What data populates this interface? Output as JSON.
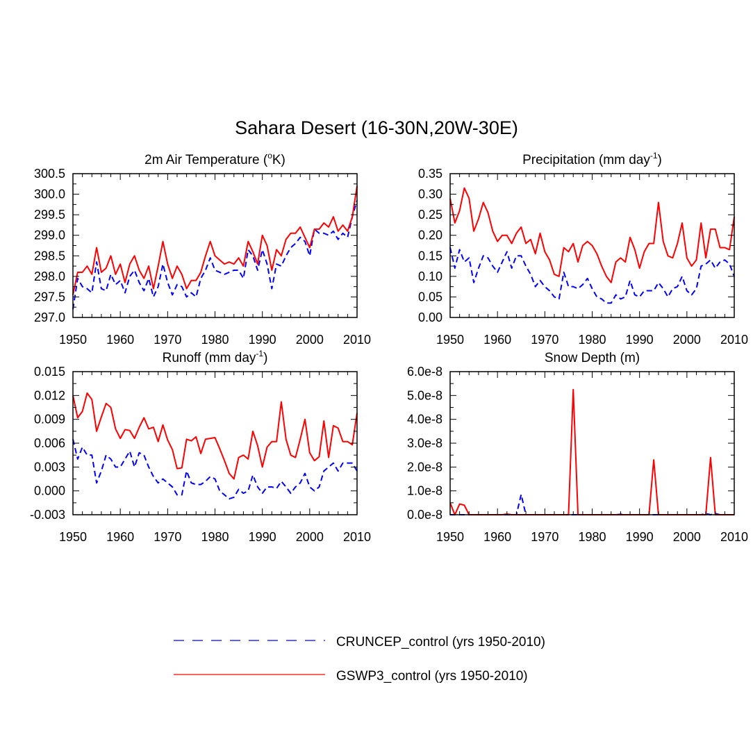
{
  "figure": {
    "title": "Sahara Desert (16-30N,20W-30E)"
  },
  "legend": {
    "entries": [
      {
        "label": "CRUNCEP_control (yrs 1950-2010)",
        "color": "#0000ff",
        "dash": true
      },
      {
        "label": "GSWP3_control (yrs 1950-2010)",
        "color": "#ff0000",
        "dash": false
      }
    ]
  },
  "chart_data": [
    {
      "type": "line",
      "title": "2m Air Temperature (",
      "title_sup": "o",
      "title_after": "K)",
      "xlabel": "",
      "ylabel": "",
      "xlim": [
        1950,
        2010
      ],
      "ylim": [
        297.0,
        300.5
      ],
      "xticks": [
        "1950",
        "1960",
        "1970",
        "1980",
        "1990",
        "2000",
        "2010"
      ],
      "yticks": [
        "297.0",
        "297.5",
        "298.0",
        "298.5",
        "299.0",
        "299.5",
        "300.0",
        "300.5"
      ],
      "x_start": 1950,
      "series": [
        {
          "name": "CRUNCEP_control (yrs 1950-2010)",
          "color": "#0000ff",
          "dash": true,
          "values": [
            297.2,
            297.95,
            297.75,
            297.7,
            297.6,
            298.35,
            297.7,
            297.65,
            298.05,
            297.8,
            297.9,
            297.6,
            298.0,
            298.15,
            297.85,
            297.65,
            297.95,
            297.5,
            297.75,
            298.3,
            297.85,
            297.55,
            297.8,
            297.75,
            297.5,
            297.6,
            297.5,
            297.95,
            298.15,
            298.45,
            298.15,
            298.1,
            298.05,
            298.1,
            298.15,
            298.15,
            297.95,
            298.65,
            298.5,
            298.15,
            298.65,
            298.3,
            297.7,
            298.3,
            298.25,
            298.5,
            298.7,
            298.8,
            298.95,
            298.85,
            298.5,
            299.15,
            299.05,
            299.05,
            299.0,
            299.1,
            298.9,
            299.05,
            298.95,
            299.45,
            299.85
          ]
        },
        {
          "name": "GSWP3_control (yrs 1950-2010)",
          "color": "#ff0000",
          "dash": false,
          "values": [
            297.55,
            298.1,
            298.1,
            298.25,
            298.05,
            298.7,
            298.1,
            298.2,
            298.5,
            298.05,
            298.3,
            297.85,
            298.3,
            298.5,
            298.15,
            297.95,
            298.25,
            297.7,
            298.25,
            298.85,
            298.3,
            297.95,
            298.25,
            298.05,
            297.7,
            297.9,
            297.9,
            298.1,
            298.5,
            298.85,
            298.5,
            298.4,
            298.3,
            298.35,
            298.3,
            298.45,
            298.25,
            298.85,
            298.6,
            298.3,
            299.0,
            298.75,
            298.15,
            298.65,
            298.5,
            298.9,
            299.05,
            299.05,
            299.2,
            298.95,
            298.7,
            299.15,
            299.15,
            299.3,
            299.2,
            299.45,
            299.1,
            299.25,
            299.1,
            299.45,
            300.2
          ]
        }
      ]
    },
    {
      "type": "line",
      "title": "Precipitation (mm day",
      "title_sup": "-1",
      "title_after": ")",
      "xlabel": "",
      "ylabel": "",
      "xlim": [
        1950,
        2010
      ],
      "ylim": [
        0.0,
        0.35
      ],
      "xticks": [
        "1950",
        "1960",
        "1970",
        "1980",
        "1990",
        "2000",
        "2010"
      ],
      "yticks": [
        "0.00",
        "0.05",
        "0.10",
        "0.15",
        "0.20",
        "0.25",
        "0.30",
        "0.35"
      ],
      "x_start": 1950,
      "series": [
        {
          "name": "CRUNCEP_control (yrs 1950-2010)",
          "color": "#0000ff",
          "dash": true,
          "values": [
            0.17,
            0.12,
            0.165,
            0.135,
            0.145,
            0.085,
            0.12,
            0.15,
            0.145,
            0.125,
            0.11,
            0.135,
            0.16,
            0.12,
            0.15,
            0.15,
            0.125,
            0.105,
            0.075,
            0.09,
            0.075,
            0.065,
            0.05,
            0.045,
            0.11,
            0.075,
            0.075,
            0.07,
            0.08,
            0.095,
            0.07,
            0.05,
            0.045,
            0.035,
            0.035,
            0.055,
            0.045,
            0.05,
            0.09,
            0.055,
            0.05,
            0.065,
            0.065,
            0.065,
            0.085,
            0.07,
            0.05,
            0.07,
            0.075,
            0.1,
            0.065,
            0.055,
            0.07,
            0.125,
            0.13,
            0.14,
            0.12,
            0.135,
            0.14,
            0.13,
            0.1
          ]
        },
        {
          "name": "GSWP3_control (yrs 1950-2010)",
          "color": "#ff0000",
          "dash": false,
          "values": [
            0.29,
            0.23,
            0.26,
            0.315,
            0.29,
            0.21,
            0.24,
            0.28,
            0.255,
            0.21,
            0.185,
            0.2,
            0.2,
            0.18,
            0.205,
            0.22,
            0.18,
            0.19,
            0.155,
            0.205,
            0.16,
            0.14,
            0.105,
            0.1,
            0.17,
            0.16,
            0.18,
            0.135,
            0.175,
            0.185,
            0.175,
            0.155,
            0.125,
            0.1,
            0.085,
            0.135,
            0.145,
            0.135,
            0.195,
            0.165,
            0.12,
            0.16,
            0.18,
            0.18,
            0.28,
            0.185,
            0.15,
            0.145,
            0.18,
            0.23,
            0.145,
            0.125,
            0.14,
            0.23,
            0.145,
            0.215,
            0.215,
            0.17,
            0.17,
            0.165,
            0.245
          ]
        }
      ]
    },
    {
      "type": "line",
      "title": "Runoff (mm day",
      "title_sup": "-1",
      "title_after": ")",
      "xlabel": "",
      "ylabel": "",
      "xlim": [
        1950,
        2010
      ],
      "ylim": [
        -0.003,
        0.015
      ],
      "xticks": [
        "1950",
        "1960",
        "1970",
        "1980",
        "1990",
        "2000",
        "2010"
      ],
      "yticks": [
        "-0.003",
        "0.000",
        "0.003",
        "0.006",
        "0.009",
        "0.012",
        "0.015"
      ],
      "x_start": 1950,
      "series": [
        {
          "name": "CRUNCEP_control (yrs 1950-2010)",
          "color": "#0000ff",
          "dash": true,
          "values": [
            0.0065,
            0.004,
            0.0055,
            0.0045,
            0.0045,
            0.001,
            0.0025,
            0.0045,
            0.004,
            0.003,
            0.003,
            0.004,
            0.005,
            0.003,
            0.0048,
            0.0045,
            0.003,
            0.0018,
            0.001,
            0.0015,
            0.001,
            0.0005,
            -0.0005,
            -0.0005,
            0.0025,
            0.001,
            0.0008,
            0.0008,
            0.0012,
            0.0018,
            0.0015,
            0.0,
            -0.0005,
            -0.001,
            -0.0008,
            0.0002,
            -0.0003,
            0.0,
            0.002,
            0.0005,
            -0.0003,
            0.0005,
            0.0005,
            0.0003,
            0.0012,
            0.0005,
            -0.0003,
            0.0005,
            0.001,
            0.0022,
            0.0005,
            0.0,
            0.0005,
            0.0025,
            0.003,
            0.0035,
            0.0025,
            0.0035,
            0.0035,
            0.0035,
            0.0025
          ]
        },
        {
          "name": "GSWP3_control (yrs 1950-2010)",
          "color": "#ff0000",
          "dash": false,
          "values": [
            0.012,
            0.0092,
            0.01,
            0.0123,
            0.0115,
            0.0075,
            0.0093,
            0.011,
            0.0105,
            0.0078,
            0.0066,
            0.0077,
            0.0076,
            0.0066,
            0.008,
            0.0092,
            0.0078,
            0.008,
            0.0062,
            0.0083,
            0.0064,
            0.0052,
            0.0028,
            0.0029,
            0.0065,
            0.0063,
            0.0068,
            0.0047,
            0.0065,
            0.0066,
            0.0067,
            0.0053,
            0.0038,
            0.0022,
            0.0015,
            0.0042,
            0.0045,
            0.004,
            0.0075,
            0.0057,
            0.003,
            0.0055,
            0.0062,
            0.0062,
            0.0112,
            0.0065,
            0.0045,
            0.0042,
            0.0065,
            0.009,
            0.0048,
            0.0038,
            0.0043,
            0.0088,
            0.0042,
            0.0082,
            0.0079,
            0.0062,
            0.0062,
            0.0058,
            0.0098
          ]
        }
      ]
    },
    {
      "type": "line",
      "title": "Snow Depth (m)",
      "title_sup": "",
      "title_after": "",
      "xlabel": "",
      "ylabel": "",
      "xlim": [
        1950,
        2010
      ],
      "ylim": [
        0.0,
        6e-08
      ],
      "xticks": [
        "1950",
        "1960",
        "1970",
        "1980",
        "1990",
        "2000",
        "2010"
      ],
      "yticks": [
        "0.0e-8",
        "1.0e-8",
        "2.0e-8",
        "3.0e-8",
        "4.0e-8",
        "5.0e-8",
        "6.0e-8"
      ],
      "x_start": 1950,
      "series": [
        {
          "name": "CRUNCEP_control (yrs 1950-2010)",
          "color": "#0000ff",
          "dash": true,
          "values": [
            0,
            0,
            0,
            0,
            0,
            0,
            0,
            0,
            0,
            0,
            0,
            0,
            0,
            0,
            0,
            8.5e-09,
            0,
            0,
            0,
            0,
            0,
            0,
            0,
            0,
            0,
            0,
            0,
            0,
            0,
            0,
            0,
            0,
            0,
            0,
            0,
            0,
            2e-10,
            0,
            0,
            0,
            0,
            0,
            0,
            0,
            0,
            0,
            0,
            0,
            0,
            0,
            0,
            0,
            0,
            0,
            5e-10,
            0,
            5e-10,
            0,
            0,
            0,
            0
          ]
        },
        {
          "name": "GSWP3_control (yrs 1950-2010)",
          "color": "#ff0000",
          "dash": false,
          "values": [
            5e-09,
            0,
            4.5e-09,
            4e-09,
            0,
            0,
            0,
            0,
            0,
            0,
            0,
            0,
            3e-10,
            0,
            0,
            0,
            0,
            0,
            0,
            0,
            0,
            0,
            0,
            0,
            0,
            0,
            5.25e-08,
            0,
            0,
            0,
            0,
            0,
            0,
            0,
            0,
            0,
            0,
            0,
            0,
            0,
            0,
            0,
            0,
            2.3e-08,
            0,
            0,
            0,
            0,
            0,
            0,
            0,
            0,
            0,
            0,
            0,
            2.4e-08,
            0,
            0,
            0,
            0,
            0
          ]
        }
      ]
    }
  ]
}
